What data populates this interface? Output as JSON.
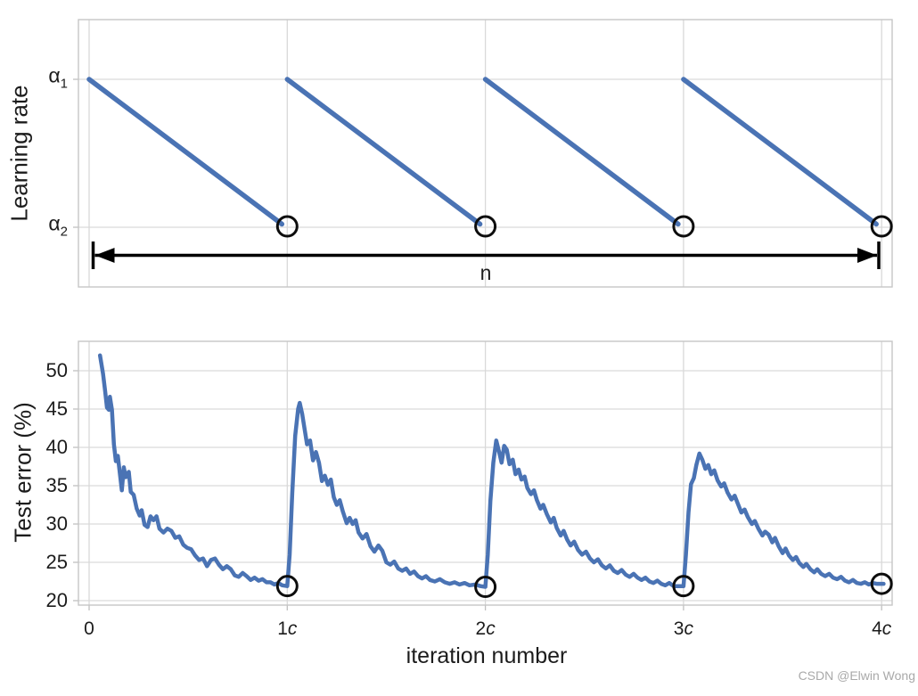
{
  "watermark": "CSDN @Elwin Wong",
  "colors": {
    "line_blue": "#4a73b4",
    "grid": "#d9d9d9",
    "border": "#c6c6c6",
    "tick": "#c0c0c0",
    "marker_ring": "#0d0d0d",
    "arrow_black": "#000000",
    "text": "#1c1c1c",
    "watermark_gray": "#a9a9a9"
  },
  "chart_data": [
    {
      "id": "learning_rate_schedule",
      "type": "line",
      "ylabel": "Learning rate",
      "yticks": [
        {
          "base": "α",
          "sub": "1",
          "value_name": "alpha1"
        },
        {
          "base": "α",
          "sub": "2",
          "value_name": "alpha2"
        }
      ],
      "x_unit": "cycles of length c",
      "xlim_cycles": [
        0,
        4
      ],
      "description": "sawtooth: linear decay from alpha1 to alpha2 within each cycle, instant restart to alpha1",
      "segments_cycles": [
        [
          0,
          1
        ],
        [
          1,
          2
        ],
        [
          2,
          3
        ],
        [
          3,
          4
        ]
      ],
      "restart_marker_x_cycles": [
        1,
        2,
        3,
        4
      ],
      "annotation_arrow": {
        "label": "n",
        "from_x_cycles": 0,
        "to_x_cycles": 4
      },
      "grid": true
    },
    {
      "id": "test_error",
      "type": "line",
      "xlabel": "iteration number",
      "ylabel": "Test error (%)",
      "ylim": [
        20,
        54
      ],
      "yticks": [
        50,
        45,
        40,
        35,
        30,
        25,
        20
      ],
      "xticks": [
        {
          "num": "0",
          "suffix": ""
        },
        {
          "num": "1",
          "suffix": "c"
        },
        {
          "num": "2",
          "suffix": "c"
        },
        {
          "num": "3",
          "suffix": "c"
        },
        {
          "num": "4",
          "suffix": "c"
        }
      ],
      "grid": true,
      "marker_points": [
        [
          1,
          21.9
        ],
        [
          2,
          21.8
        ],
        [
          3,
          21.9
        ],
        [
          4,
          22.2
        ]
      ],
      "points": [
        [
          0.055,
          52.0
        ],
        [
          0.07,
          49.6
        ],
        [
          0.08,
          47.5
        ],
        [
          0.09,
          45.2
        ],
        [
          0.1,
          44.9
        ],
        [
          0.105,
          46.6
        ],
        [
          0.115,
          44.9
        ],
        [
          0.125,
          40.4
        ],
        [
          0.135,
          38.2
        ],
        [
          0.145,
          38.9
        ],
        [
          0.155,
          36.6
        ],
        [
          0.165,
          34.4
        ],
        [
          0.175,
          37.4
        ],
        [
          0.185,
          36.1
        ],
        [
          0.2,
          36.8
        ],
        [
          0.21,
          34.2
        ],
        [
          0.225,
          33.8
        ],
        [
          0.24,
          32.0
        ],
        [
          0.255,
          31.1
        ],
        [
          0.265,
          31.8
        ],
        [
          0.28,
          29.9
        ],
        [
          0.295,
          29.6
        ],
        [
          0.31,
          31.0
        ],
        [
          0.325,
          30.5
        ],
        [
          0.34,
          31.0
        ],
        [
          0.355,
          29.4
        ],
        [
          0.375,
          28.9
        ],
        [
          0.395,
          29.4
        ],
        [
          0.415,
          29.1
        ],
        [
          0.435,
          28.2
        ],
        [
          0.455,
          28.4
        ],
        [
          0.475,
          27.3
        ],
        [
          0.495,
          26.9
        ],
        [
          0.515,
          26.7
        ],
        [
          0.535,
          25.9
        ],
        [
          0.555,
          25.3
        ],
        [
          0.575,
          25.5
        ],
        [
          0.595,
          24.5
        ],
        [
          0.615,
          25.3
        ],
        [
          0.635,
          25.5
        ],
        [
          0.655,
          24.7
        ],
        [
          0.675,
          24.1
        ],
        [
          0.695,
          24.5
        ],
        [
          0.715,
          24.1
        ],
        [
          0.735,
          23.3
        ],
        [
          0.755,
          23.1
        ],
        [
          0.775,
          23.6
        ],
        [
          0.795,
          23.2
        ],
        [
          0.815,
          22.7
        ],
        [
          0.835,
          23.0
        ],
        [
          0.855,
          22.6
        ],
        [
          0.875,
          22.8
        ],
        [
          0.895,
          22.4
        ],
        [
          0.915,
          22.4
        ],
        [
          0.935,
          22.1
        ],
        [
          0.955,
          22.3
        ],
        [
          0.975,
          22.0
        ],
        [
          1.0,
          21.9
        ],
        [
          1.012,
          26.0
        ],
        [
          1.025,
          34.0
        ],
        [
          1.04,
          41.5
        ],
        [
          1.055,
          45.0
        ],
        [
          1.063,
          45.8
        ],
        [
          1.075,
          44.4
        ],
        [
          1.09,
          42.0
        ],
        [
          1.1,
          40.4
        ],
        [
          1.115,
          40.9
        ],
        [
          1.13,
          38.3
        ],
        [
          1.145,
          39.4
        ],
        [
          1.16,
          38.0
        ],
        [
          1.175,
          35.6
        ],
        [
          1.19,
          36.3
        ],
        [
          1.205,
          35.1
        ],
        [
          1.22,
          35.8
        ],
        [
          1.235,
          33.5
        ],
        [
          1.25,
          32.5
        ],
        [
          1.265,
          33.1
        ],
        [
          1.28,
          31.7
        ],
        [
          1.3,
          30.1
        ],
        [
          1.315,
          30.8
        ],
        [
          1.33,
          30.0
        ],
        [
          1.345,
          30.5
        ],
        [
          1.36,
          28.9
        ],
        [
          1.38,
          28.1
        ],
        [
          1.4,
          28.7
        ],
        [
          1.42,
          27.1
        ],
        [
          1.44,
          26.4
        ],
        [
          1.46,
          27.2
        ],
        [
          1.48,
          26.5
        ],
        [
          1.5,
          25.0
        ],
        [
          1.52,
          24.7
        ],
        [
          1.54,
          25.1
        ],
        [
          1.56,
          24.2
        ],
        [
          1.58,
          23.9
        ],
        [
          1.6,
          24.2
        ],
        [
          1.62,
          23.5
        ],
        [
          1.64,
          23.8
        ],
        [
          1.66,
          23.2
        ],
        [
          1.68,
          22.9
        ],
        [
          1.7,
          23.2
        ],
        [
          1.72,
          22.7
        ],
        [
          1.745,
          22.5
        ],
        [
          1.77,
          22.8
        ],
        [
          1.795,
          22.4
        ],
        [
          1.82,
          22.2
        ],
        [
          1.845,
          22.4
        ],
        [
          1.87,
          22.1
        ],
        [
          1.895,
          22.3
        ],
        [
          1.92,
          22.0
        ],
        [
          1.95,
          22.1
        ],
        [
          1.975,
          21.9
        ],
        [
          2.0,
          21.8
        ],
        [
          2.012,
          26.0
        ],
        [
          2.025,
          33.0
        ],
        [
          2.04,
          38.0
        ],
        [
          2.055,
          40.9
        ],
        [
          2.07,
          39.3
        ],
        [
          2.082,
          38.0
        ],
        [
          2.095,
          40.2
        ],
        [
          2.108,
          39.7
        ],
        [
          2.122,
          37.8
        ],
        [
          2.138,
          38.4
        ],
        [
          2.152,
          36.5
        ],
        [
          2.168,
          37.1
        ],
        [
          2.182,
          35.8
        ],
        [
          2.198,
          36.2
        ],
        [
          2.212,
          34.7
        ],
        [
          2.23,
          33.9
        ],
        [
          2.245,
          34.4
        ],
        [
          2.26,
          33.1
        ],
        [
          2.278,
          32.0
        ],
        [
          2.292,
          32.5
        ],
        [
          2.31,
          31.3
        ],
        [
          2.33,
          30.2
        ],
        [
          2.345,
          30.8
        ],
        [
          2.36,
          29.5
        ],
        [
          2.38,
          28.5
        ],
        [
          2.395,
          29.1
        ],
        [
          2.412,
          28.0
        ],
        [
          2.43,
          27.2
        ],
        [
          2.448,
          27.7
        ],
        [
          2.468,
          26.6
        ],
        [
          2.488,
          26.0
        ],
        [
          2.508,
          26.4
        ],
        [
          2.528,
          25.5
        ],
        [
          2.548,
          25.0
        ],
        [
          2.568,
          25.4
        ],
        [
          2.588,
          24.6
        ],
        [
          2.608,
          24.2
        ],
        [
          2.628,
          24.6
        ],
        [
          2.648,
          23.9
        ],
        [
          2.668,
          23.6
        ],
        [
          2.688,
          24.0
        ],
        [
          2.708,
          23.4
        ],
        [
          2.728,
          23.1
        ],
        [
          2.748,
          23.5
        ],
        [
          2.768,
          23.0
        ],
        [
          2.788,
          22.7
        ],
        [
          2.808,
          23.0
        ],
        [
          2.828,
          22.5
        ],
        [
          2.848,
          22.3
        ],
        [
          2.868,
          22.6
        ],
        [
          2.888,
          22.2
        ],
        [
          2.908,
          22.0
        ],
        [
          2.928,
          22.3
        ],
        [
          2.95,
          21.9
        ],
        [
          2.975,
          21.9
        ],
        [
          3.0,
          21.9
        ],
        [
          3.012,
          26.0
        ],
        [
          3.025,
          31.5
        ],
        [
          3.038,
          35.2
        ],
        [
          3.052,
          36.0
        ],
        [
          3.065,
          37.7
        ],
        [
          3.08,
          39.2
        ],
        [
          3.095,
          38.4
        ],
        [
          3.11,
          37.2
        ],
        [
          3.125,
          37.7
        ],
        [
          3.14,
          36.5
        ],
        [
          3.155,
          37.0
        ],
        [
          3.172,
          35.7
        ],
        [
          3.19,
          34.9
        ],
        [
          3.205,
          35.3
        ],
        [
          3.222,
          34.1
        ],
        [
          3.242,
          33.2
        ],
        [
          3.258,
          33.7
        ],
        [
          3.275,
          32.6
        ],
        [
          3.292,
          31.5
        ],
        [
          3.308,
          31.9
        ],
        [
          3.325,
          30.9
        ],
        [
          3.345,
          30.0
        ],
        [
          3.36,
          30.4
        ],
        [
          3.378,
          29.4
        ],
        [
          3.398,
          28.5
        ],
        [
          3.412,
          29.0
        ],
        [
          3.43,
          28.6
        ],
        [
          3.448,
          27.6
        ],
        [
          3.462,
          28.2
        ],
        [
          3.48,
          27.1
        ],
        [
          3.5,
          26.2
        ],
        [
          3.515,
          26.8
        ],
        [
          3.532,
          25.9
        ],
        [
          3.552,
          25.3
        ],
        [
          3.568,
          25.7
        ],
        [
          3.585,
          24.9
        ],
        [
          3.605,
          24.4
        ],
        [
          3.62,
          24.8
        ],
        [
          3.64,
          24.1
        ],
        [
          3.66,
          23.7
        ],
        [
          3.675,
          24.1
        ],
        [
          3.695,
          23.5
        ],
        [
          3.715,
          23.2
        ],
        [
          3.735,
          23.5
        ],
        [
          3.755,
          23.0
        ],
        [
          3.775,
          22.8
        ],
        [
          3.795,
          23.1
        ],
        [
          3.815,
          22.6
        ],
        [
          3.835,
          22.4
        ],
        [
          3.855,
          22.7
        ],
        [
          3.875,
          22.3
        ],
        [
          3.895,
          22.2
        ],
        [
          3.915,
          22.4
        ],
        [
          3.935,
          22.1
        ],
        [
          3.955,
          22.3
        ],
        [
          3.975,
          22.2
        ],
        [
          4.01,
          22.2
        ]
      ]
    }
  ]
}
